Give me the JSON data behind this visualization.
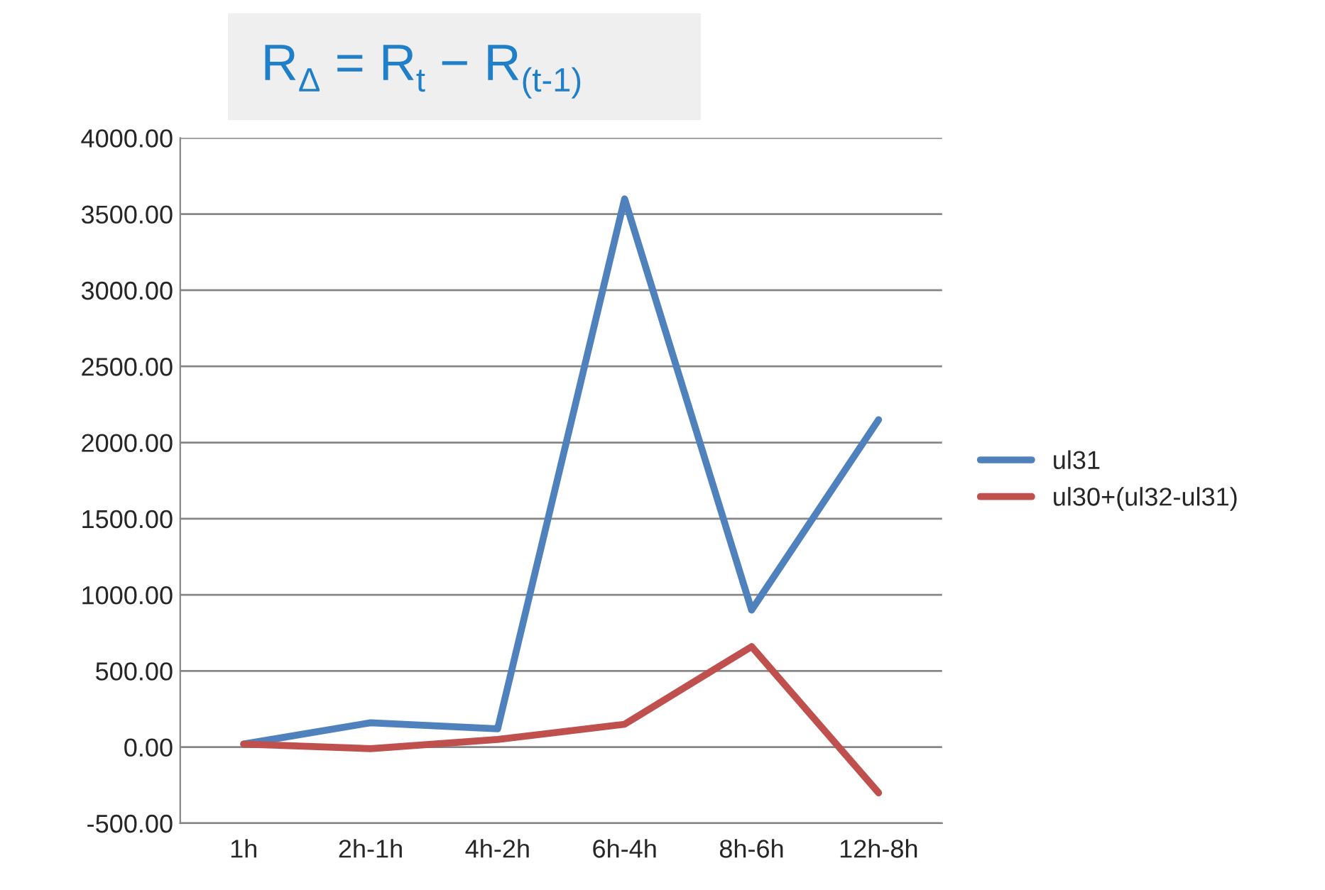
{
  "chart_data": {
    "type": "line",
    "title": "R$_{Δ}$ = R$_{t}$ − R$_{(t-1)}$",
    "categories": [
      "1h",
      "2h-1h",
      "4h-2h",
      "6h-4h",
      "8h-6h",
      "12h-8h"
    ],
    "series": [
      {
        "name": "ul31",
        "color": "#4f81bd",
        "values": [
          20,
          160,
          120,
          3600,
          900,
          2150
        ]
      },
      {
        "name": "ul30+(ul32-ul31)",
        "color": "#c0504d",
        "values": [
          20,
          -10,
          50,
          150,
          660,
          -300
        ]
      }
    ],
    "ylim": [
      -500,
      4000
    ],
    "yticks": [
      {
        "value": -500,
        "label": "-500.00"
      },
      {
        "value": 0,
        "label": "0.00"
      },
      {
        "value": 500,
        "label": "500.00"
      },
      {
        "value": 1000,
        "label": "1000.00"
      },
      {
        "value": 1500,
        "label": "1500.00"
      },
      {
        "value": 2000,
        "label": "2000.00"
      },
      {
        "value": 2500,
        "label": "2500.00"
      },
      {
        "value": 3000,
        "label": "3000.00"
      },
      {
        "value": 3500,
        "label": "3500.00"
      },
      {
        "value": 4000,
        "label": "4000.00"
      }
    ],
    "grid": "y",
    "legend": "right",
    "marker": "none",
    "line_style": "solid"
  }
}
